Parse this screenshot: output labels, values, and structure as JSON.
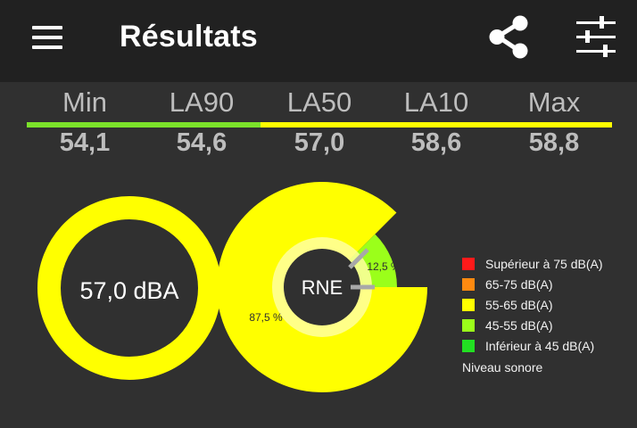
{
  "appbar": {
    "title": "Résultats",
    "menu_icon": "menu-icon",
    "share_icon": "share-icon",
    "settings_icon": "tune-sliders-icon"
  },
  "stats": [
    {
      "label": "Min",
      "value": "54,1"
    },
    {
      "label": "LA90",
      "value": "54,6"
    },
    {
      "label": "LA50",
      "value": "57,0"
    },
    {
      "label": "LA10",
      "value": "58,6"
    },
    {
      "label": "Max",
      "value": "58,8"
    }
  ],
  "level_bar": {
    "green_color": "#7be22a",
    "yellow_color": "#ffff00"
  },
  "gauge": {
    "text": "57,0 dBA",
    "color": "#ffff00"
  },
  "rne": {
    "center_label": "RNE",
    "segments": [
      {
        "label": "87,5 %",
        "percent": 87.5,
        "color": "#ffff00"
      },
      {
        "label": "12,5 %",
        "percent": 12.5,
        "color": "#9bff1a"
      }
    ]
  },
  "legend": {
    "items": [
      {
        "label": "Supérieur à 75 dB(A)",
        "color": "#ff1a1a"
      },
      {
        "label": "65-75 dB(A)",
        "color": "#ff8a10"
      },
      {
        "label": "55-65 dB(A)",
        "color": "#ffff00"
      },
      {
        "label": "45-55 dB(A)",
        "color": "#9bff1a"
      },
      {
        "label": "Inférieur à 45 dB(A)",
        "color": "#22e022"
      }
    ],
    "footer": "Niveau sonore"
  }
}
